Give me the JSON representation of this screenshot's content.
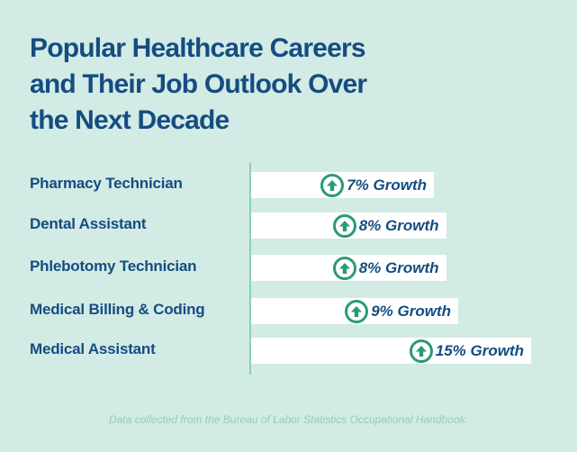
{
  "chart_data": {
    "type": "bar",
    "orientation": "horizontal",
    "title": "Popular Healthcare Careers and Their Job Outlook Over the Next Decade",
    "title_lines": [
      "Popular Healthcare Careers",
      "and Their Job Outlook Over",
      "the Next Decade"
    ],
    "categories": [
      "Pharmacy Technician",
      "Dental Assistant",
      "Phlebotomy Technician",
      "Medical Billing & Coding",
      "Medical Assistant"
    ],
    "values": [
      7,
      8,
      8,
      9,
      15
    ],
    "unit": "%",
    "data_labels": [
      "7% Growth",
      "8% Growth",
      "8% Growth",
      "9% Growth",
      "15% Growth"
    ],
    "xlabel": "",
    "ylabel": "",
    "xlim": [
      0,
      15
    ],
    "grid": false,
    "legend": "none",
    "marker_icon": "arrow-up-circle-icon",
    "source_note": "Data collected from the Bureau of Labor Statistics Occupational Handbook."
  },
  "colors": {
    "background": "#d2ebe4",
    "title": "#154c82",
    "bar": "#ffffff",
    "axis": "#8fcfb8",
    "icon": "#2a9a76",
    "source": "#94cdb9"
  }
}
